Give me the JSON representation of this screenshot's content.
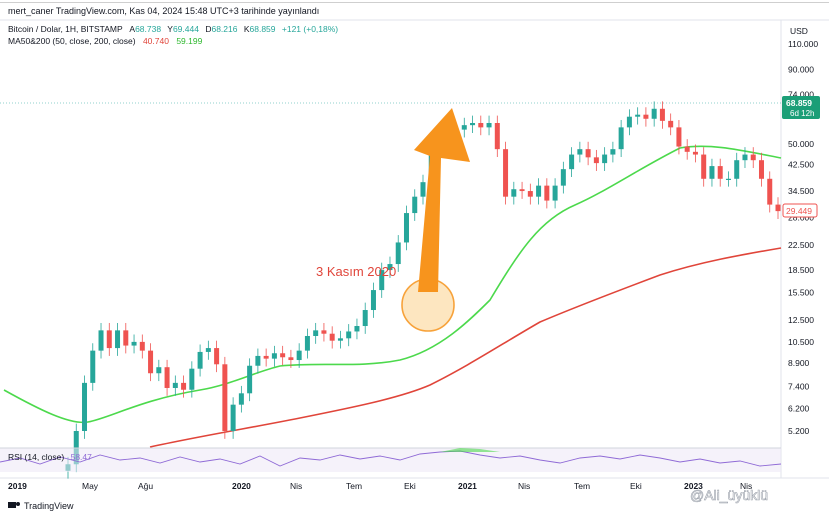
{
  "header": {
    "publisher_line": "mert_caner TradingView.com, Kas 04, 2024 15:48 UTC+3 tarihinde yayınlandı",
    "symbol": "Bitcoin / Dolar, 1H, BITSTAMP",
    "ohlc": [
      {
        "label": "A",
        "value": "68.738"
      },
      {
        "label": "Y",
        "value": "69.444"
      },
      {
        "label": "D",
        "value": "68.216"
      },
      {
        "label": "K",
        "value": "68.859"
      }
    ],
    "change": "+121 (+0,18%)",
    "ma_label": "MA50&200 (50, close, 200, close)",
    "ma50_value": "40.740",
    "ma200_value": "59.199"
  },
  "currency": "USD",
  "price_badge": {
    "price": "68.859",
    "time": "6d 12h"
  },
  "ma200_badge": "29.449",
  "annotation": {
    "text": "3 Kasım 2020",
    "color": "#e0453a"
  },
  "rsi": {
    "label": "RSI (14, close)",
    "value": "58.47"
  },
  "footer": {
    "brand": "TradingView",
    "watermark": "@Ali_üyüklü"
  },
  "colors": {
    "up": "#26a69a",
    "down": "#ef5350",
    "ma50": "#4cd94c",
    "ma200": "#e0453a",
    "arrow": "#f7941d",
    "circle_fill": "#fde0b0",
    "circle_stroke": "#f7a23a",
    "badge_green": "#1b9e77",
    "badge_red": "#ef5350",
    "rsi_line": "#8f6ad6"
  },
  "chart_data": {
    "type": "candlestick",
    "title": "Bitcoin / Dolar, 1H, BITSTAMP",
    "y_scale": "log",
    "y_ticks": [
      "110.000",
      "90.000",
      "74.000",
      "50.000",
      "42.500",
      "34.500",
      "28.000",
      "22.500",
      "18.500",
      "15.500",
      "12.500",
      "10.500",
      "8.900",
      "7.400",
      "6.200",
      "5.200"
    ],
    "x_ticks": [
      "2019",
      "May",
      "Ağu",
      "2020",
      "Nis",
      "Tem",
      "Eki",
      "2021",
      "Nis",
      "Tem",
      "Eki",
      "2023",
      "Nis"
    ],
    "current_price": 68859,
    "series": [
      {
        "name": "MA50",
        "value_label": "40.740"
      },
      {
        "name": "MA200",
        "value_label": "59.199"
      }
    ],
    "candles": [
      [
        3800,
        4000
      ],
      [
        4000,
        5200
      ],
      [
        5200,
        7600
      ],
      [
        7600,
        9800
      ],
      [
        9800,
        11500
      ],
      [
        11500,
        10000
      ],
      [
        10000,
        11500
      ],
      [
        11500,
        10200
      ],
      [
        10200,
        10500
      ],
      [
        10500,
        9800
      ],
      [
        9800,
        8200
      ],
      [
        8200,
        8600
      ],
      [
        8600,
        7300
      ],
      [
        7300,
        7600
      ],
      [
        7600,
        7200
      ],
      [
        7200,
        8500
      ],
      [
        8500,
        9700
      ],
      [
        9700,
        10000
      ],
      [
        10000,
        8800
      ],
      [
        8800,
        5200
      ],
      [
        5200,
        6400
      ],
      [
        6400,
        7000
      ],
      [
        7000,
        8700
      ],
      [
        8700,
        9400
      ],
      [
        9400,
        9200
      ],
      [
        9200,
        9600
      ],
      [
        9600,
        9300
      ],
      [
        9300,
        9100
      ],
      [
        9100,
        9800
      ],
      [
        9800,
        11000
      ],
      [
        11000,
        11500
      ],
      [
        11500,
        11200
      ],
      [
        11200,
        10600
      ],
      [
        10600,
        10800
      ],
      [
        10800,
        11400
      ],
      [
        11400,
        11900
      ],
      [
        11900,
        13500
      ],
      [
        13500,
        15800
      ],
      [
        15800,
        18500
      ],
      [
        18500,
        19400
      ],
      [
        19400,
        23000
      ],
      [
        23000,
        29000
      ],
      [
        29000,
        33000
      ],
      [
        33000,
        37000
      ],
      [
        37000,
        46000
      ],
      [
        46000,
        54000
      ],
      [
        54000,
        50000
      ],
      [
        50000,
        56000
      ],
      [
        56000,
        58000
      ],
      [
        58000,
        59000
      ],
      [
        59000,
        57000
      ],
      [
        57000,
        59000
      ],
      [
        59000,
        48000
      ],
      [
        48000,
        33000
      ],
      [
        33000,
        35000
      ],
      [
        35000,
        34500
      ],
      [
        34500,
        33000
      ],
      [
        33000,
        36000
      ],
      [
        36000,
        32000
      ],
      [
        32000,
        36000
      ],
      [
        36000,
        41000
      ],
      [
        41000,
        46000
      ],
      [
        46000,
        48000
      ],
      [
        48000,
        45000
      ],
      [
        45000,
        43000
      ],
      [
        43000,
        46000
      ],
      [
        46000,
        48000
      ],
      [
        48000,
        57000
      ],
      [
        57000,
        62000
      ],
      [
        62000,
        63000
      ],
      [
        63000,
        61000
      ],
      [
        61000,
        66000
      ],
      [
        66000,
        60000
      ],
      [
        60000,
        57000
      ],
      [
        57000,
        49000
      ],
      [
        49000,
        47000
      ],
      [
        47000,
        46000
      ],
      [
        46000,
        38000
      ],
      [
        38000,
        42000
      ],
      [
        42000,
        38000
      ],
      [
        38000,
        38000
      ],
      [
        38000,
        44000
      ],
      [
        44000,
        46000
      ],
      [
        46000,
        44000
      ],
      [
        44000,
        38000
      ],
      [
        38000,
        31000
      ],
      [
        31000,
        29449
      ]
    ]
  }
}
